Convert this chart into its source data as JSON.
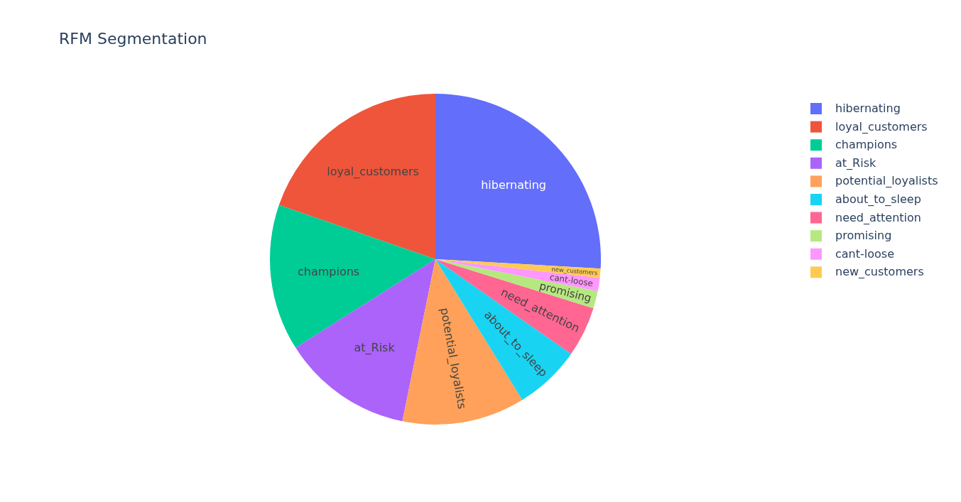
{
  "chart_data": {
    "type": "pie",
    "title": "RFM Segmentation",
    "categories": [
      "hibernating",
      "loyal_customers",
      "champions",
      "at_Risk",
      "potential_loyalists",
      "about_to_sleep",
      "need_attention",
      "promising",
      "cant-loose",
      "new_customers"
    ],
    "values": [
      25.9,
      19.7,
      14.3,
      12.8,
      12.0,
      6.5,
      4.9,
      1.7,
      1.3,
      0.9
    ],
    "colors": [
      "#636efa",
      "#ef553b",
      "#00cc96",
      "#ab63fa",
      "#ffa15a",
      "#19d3f3",
      "#ff6692",
      "#b6e880",
      "#ff97ff",
      "#fecb52"
    ],
    "legend": "right"
  }
}
